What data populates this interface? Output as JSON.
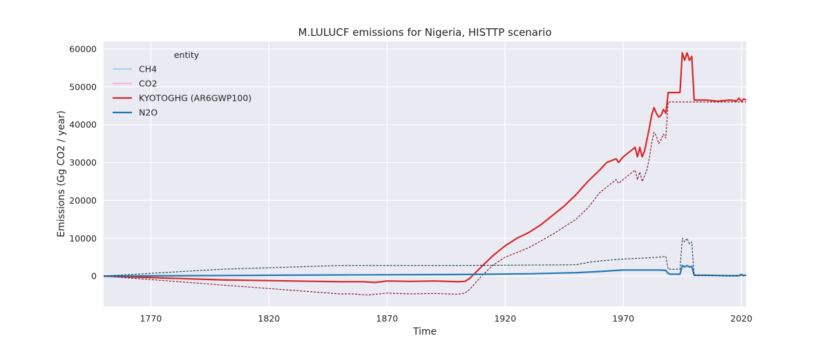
{
  "chart_data": {
    "type": "line",
    "title": "M.LULUCF emissions for Nigeria, HISTTP scenario",
    "xlabel": "Time",
    "ylabel": "Emissions (Gg CO2 / year)",
    "xlim": [
      1750,
      2022
    ],
    "ylim": [
      -8000,
      62000
    ],
    "x_ticks": [
      1770,
      1820,
      1870,
      1920,
      1970,
      2020
    ],
    "y_ticks": [
      0,
      10000,
      20000,
      30000,
      40000,
      50000,
      60000
    ],
    "grid": true,
    "legend": {
      "title": "entity",
      "placement": "top-left",
      "entries": [
        {
          "label": "CH4",
          "color": "#9edae5"
        },
        {
          "label": "CO2",
          "color": "#f7b6d2"
        },
        {
          "label": "KYOTOGHG (AR6GWP100)",
          "color": "#d62728"
        },
        {
          "label": "N2O",
          "color": "#1f77b4"
        }
      ]
    },
    "series": [
      {
        "name": "KYOTOGHG (AR6GWP100)",
        "color": "#d62728",
        "x": [
          1750,
          1800,
          1850,
          1860,
          1865,
          1870,
          1880,
          1890,
          1900,
          1903,
          1905,
          1910,
          1915,
          1920,
          1925,
          1930,
          1935,
          1940,
          1945,
          1950,
          1955,
          1960,
          1963,
          1965,
          1967,
          1968,
          1970,
          1972,
          1975,
          1976,
          1977,
          1978,
          1979,
          1980,
          1981,
          1982,
          1983,
          1984,
          1985,
          1986,
          1987,
          1988,
          1989,
          1990,
          1991,
          1992,
          1993,
          1994,
          1995,
          1996,
          1997,
          1998,
          1999,
          2000,
          2002,
          2005,
          2010,
          2015,
          2018,
          2019,
          2020,
          2021,
          2022
        ],
        "y": [
          0,
          -1000,
          -1500,
          -1500,
          -1700,
          -1300,
          -1400,
          -1300,
          -1500,
          -1400,
          -600,
          2500,
          5500,
          8000,
          10000,
          11500,
          13500,
          16000,
          18500,
          21500,
          25000,
          28000,
          30000,
          30500,
          31000,
          30000,
          31500,
          32500,
          34000,
          31500,
          34000,
          31500,
          33000,
          36000,
          39000,
          42500,
          44500,
          43000,
          42000,
          42500,
          44000,
          43000,
          48500,
          48500,
          48500,
          48500,
          48500,
          48500,
          59000,
          57000,
          59000,
          57000,
          58000,
          46500,
          46500,
          46500,
          46200,
          46500,
          46300,
          47000,
          46200,
          46800,
          46500
        ]
      },
      {
        "name": "KYOTOGHG reference",
        "color": "#7a0010",
        "dashed": true,
        "x": [
          1750,
          1850,
          1855,
          1862,
          1870,
          1880,
          1890,
          1900,
          1903,
          1905,
          1910,
          1915,
          1920,
          1930,
          1940,
          1950,
          1955,
          1960,
          1965,
          1967,
          1968,
          1970,
          1972,
          1975,
          1976,
          1977,
          1978,
          1979,
          1980,
          1981,
          1982,
          1983,
          1984,
          1985,
          1986,
          1987,
          1988,
          1989,
          1990,
          2000,
          2010,
          2022
        ],
        "y": [
          0,
          -4700,
          -4700,
          -5000,
          -4500,
          -4700,
          -4600,
          -4800,
          -4500,
          -3500,
          0,
          3000,
          5000,
          7500,
          11000,
          15000,
          18000,
          22000,
          24500,
          25500,
          24500,
          25500,
          26500,
          28000,
          25500,
          27500,
          25000,
          26500,
          28000,
          31000,
          35000,
          38000,
          37000,
          35000,
          36000,
          37500,
          36500,
          46000,
          46000,
          46000,
          46000,
          46000
        ]
      },
      {
        "name": "N2O",
        "color": "#1f77b4",
        "x": [
          1750,
          1800,
          1850,
          1900,
          1930,
          1950,
          1960,
          1970,
          1980,
          1985,
          1988,
          1989,
          1990,
          1993,
          1994,
          1995,
          1996,
          1997,
          1998,
          1999,
          2000,
          2005,
          2010,
          2015,
          2019,
          2020,
          2021,
          2022
        ],
        "y": [
          0,
          150,
          300,
          400,
          600,
          900,
          1200,
          1600,
          1600,
          1600,
          1500,
          700,
          500,
          500,
          500,
          2800,
          2400,
          2800,
          2400,
          2600,
          200,
          200,
          150,
          100,
          100,
          400,
          100,
          300
        ]
      },
      {
        "name": "N2O reference",
        "color": "#0a3540",
        "dashed": true,
        "x": [
          1750,
          1800,
          1850,
          1900,
          1950,
          1955,
          1960,
          1970,
          1980,
          1985,
          1988,
          1989,
          1990,
          1993,
          1994,
          1995,
          1996,
          1997,
          1998,
          1999,
          2000,
          2005,
          2010,
          2015,
          2019,
          2020,
          2021,
          2022
        ],
        "y": [
          0,
          1800,
          2800,
          2800,
          3000,
          3600,
          4000,
          4500,
          4800,
          5000,
          5200,
          1800,
          1800,
          1800,
          1800,
          10000,
          9000,
          10000,
          8500,
          9000,
          300,
          200,
          150,
          100,
          100,
          400,
          100,
          300
        ]
      }
    ]
  }
}
